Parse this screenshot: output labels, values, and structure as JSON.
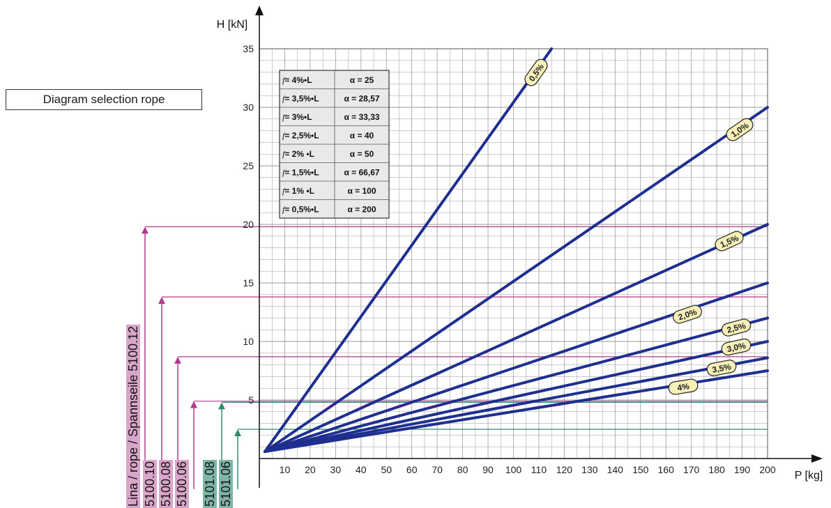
{
  "chart_data": {
    "type": "line",
    "xlabel": "P [kg]",
    "ylabel": "H [kN]",
    "xlim": [
      0,
      200
    ],
    "ylim": [
      0,
      35
    ],
    "x_ticks": [
      10,
      20,
      30,
      40,
      50,
      60,
      70,
      80,
      90,
      100,
      110,
      120,
      130,
      140,
      150,
      160,
      170,
      180,
      190,
      200
    ],
    "y_ticks": [
      5,
      10,
      15,
      20,
      25,
      30,
      35
    ],
    "grid": true,
    "series": [
      {
        "name": "0,5%",
        "x": [
          0,
          115
        ],
        "y": [
          0,
          35
        ]
      },
      {
        "name": "1,0%",
        "x": [
          0,
          200
        ],
        "y": [
          0,
          30
        ]
      },
      {
        "name": "1,5%",
        "x": [
          0,
          200
        ],
        "y": [
          0,
          20
        ]
      },
      {
        "name": "2,0%",
        "x": [
          0,
          200
        ],
        "y": [
          0,
          15
        ]
      },
      {
        "name": "2,5%",
        "x": [
          0,
          200
        ],
        "y": [
          0,
          12
        ]
      },
      {
        "name": "3,0%",
        "x": [
          0,
          200
        ],
        "y": [
          0,
          10
        ]
      },
      {
        "name": "3,5%",
        "x": [
          0,
          200
        ],
        "y": [
          0,
          8.6
        ]
      },
      {
        "name": "4%",
        "x": [
          0,
          200
        ],
        "y": [
          0,
          7.5
        ]
      }
    ],
    "series_color": "#1f2f8f",
    "table": [
      {
        "f": "f",
        "sag": "= 4%•L",
        "alpha": "α = 25"
      },
      {
        "f": "f",
        "sag": "= 3,5%•L",
        "alpha": "α = 28,57"
      },
      {
        "f": "f",
        "sag": "= 3%•L",
        "alpha": "α = 33,33"
      },
      {
        "f": "f",
        "sag": "= 2,5%•L",
        "alpha": "α = 40"
      },
      {
        "f": "f",
        "sag": "= 2% •L",
        "alpha": "α = 50"
      },
      {
        "f": "f",
        "sag": "= 1,5%•L",
        "alpha": "α = 66,67"
      },
      {
        "f": "f",
        "sag": "= 1% •L",
        "alpha": "α = 100"
      },
      {
        "f": "f",
        "sag": "= 0,5%•L",
        "alpha": "α = 200"
      }
    ],
    "ropes": [
      {
        "label": "Lina / rope / Spannseile  5100.12",
        "h": 19.8,
        "color": "#b03a8a",
        "bg": "#d9a6c9"
      },
      {
        "label": "5100.10",
        "h": 13.8,
        "color": "#b03a8a",
        "bg": "#d9a6c9"
      },
      {
        "label": "5100.08",
        "h": 8.7,
        "color": "#b03a8a",
        "bg": "#d9a6c9"
      },
      {
        "label": "5100.06",
        "h": 4.9,
        "color": "#b03a8a",
        "bg": "#d9a6c9"
      },
      {
        "label": "5101.08",
        "h": 4.8,
        "color": "#2e8a6e",
        "bg": "#7fb5a6"
      },
      {
        "label": "5101.06",
        "h": 2.5,
        "color": "#2e8a6e",
        "bg": "#7fb5a6"
      }
    ]
  },
  "selection_title": "Diagram selection rope",
  "colors": {
    "grid": "#9a9a9a",
    "label_bubble": "#f6efb8",
    "table_bg": "#e9e9e9"
  }
}
